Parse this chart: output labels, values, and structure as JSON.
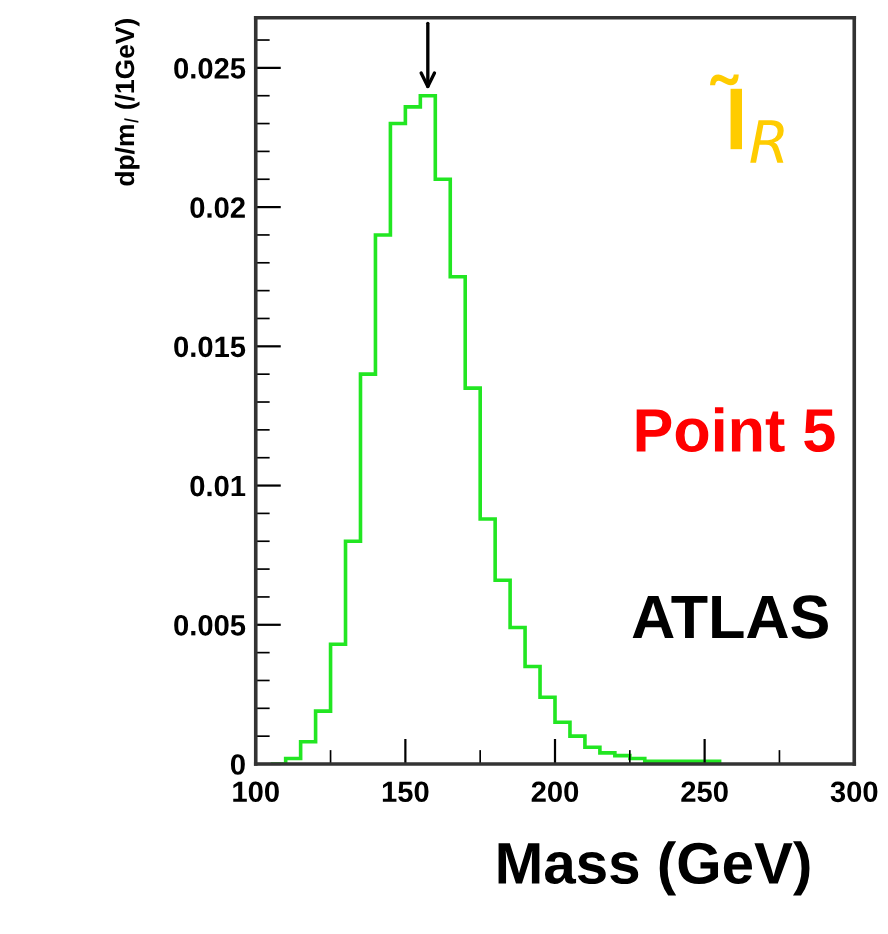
{
  "chart_data": {
    "type": "histogram",
    "xlabel": "Mass (GeV)",
    "ylabel": "dp/m$_{l}$ (/1GeV)",
    "bins": [
      105,
      110,
      115,
      120,
      125,
      130,
      135,
      140,
      145,
      150,
      155,
      160,
      165,
      170,
      175,
      180,
      185,
      190,
      195,
      200,
      205,
      210,
      215,
      220,
      225,
      230,
      235,
      240,
      245,
      250,
      255
    ],
    "values": [
      0,
      0.0002,
      0.0008,
      0.0019,
      0.0043,
      0.008,
      0.014,
      0.019,
      0.023,
      0.0236,
      0.024,
      0.021,
      0.0175,
      0.0135,
      0.0088,
      0.0066,
      0.0049,
      0.0035,
      0.0024,
      0.0015,
      0.001,
      0.0006,
      0.0004,
      0.0003,
      0.0002,
      0.0001,
      0.0001,
      0.0001,
      0.0001,
      0.0001
    ],
    "color": "#22e622",
    "xlim": [
      100,
      300
    ],
    "xticks": [
      100,
      150,
      200,
      250,
      300
    ],
    "ylim": [
      0,
      0.0268
    ],
    "yticks": [
      {
        "value": 0,
        "label": "0"
      },
      0.005,
      0.01,
      0.015,
      0.02,
      0.025
    ],
    "annotations": [
      "l̃$_{R}$",
      "Point 5",
      "ATLAS"
    ]
  }
}
